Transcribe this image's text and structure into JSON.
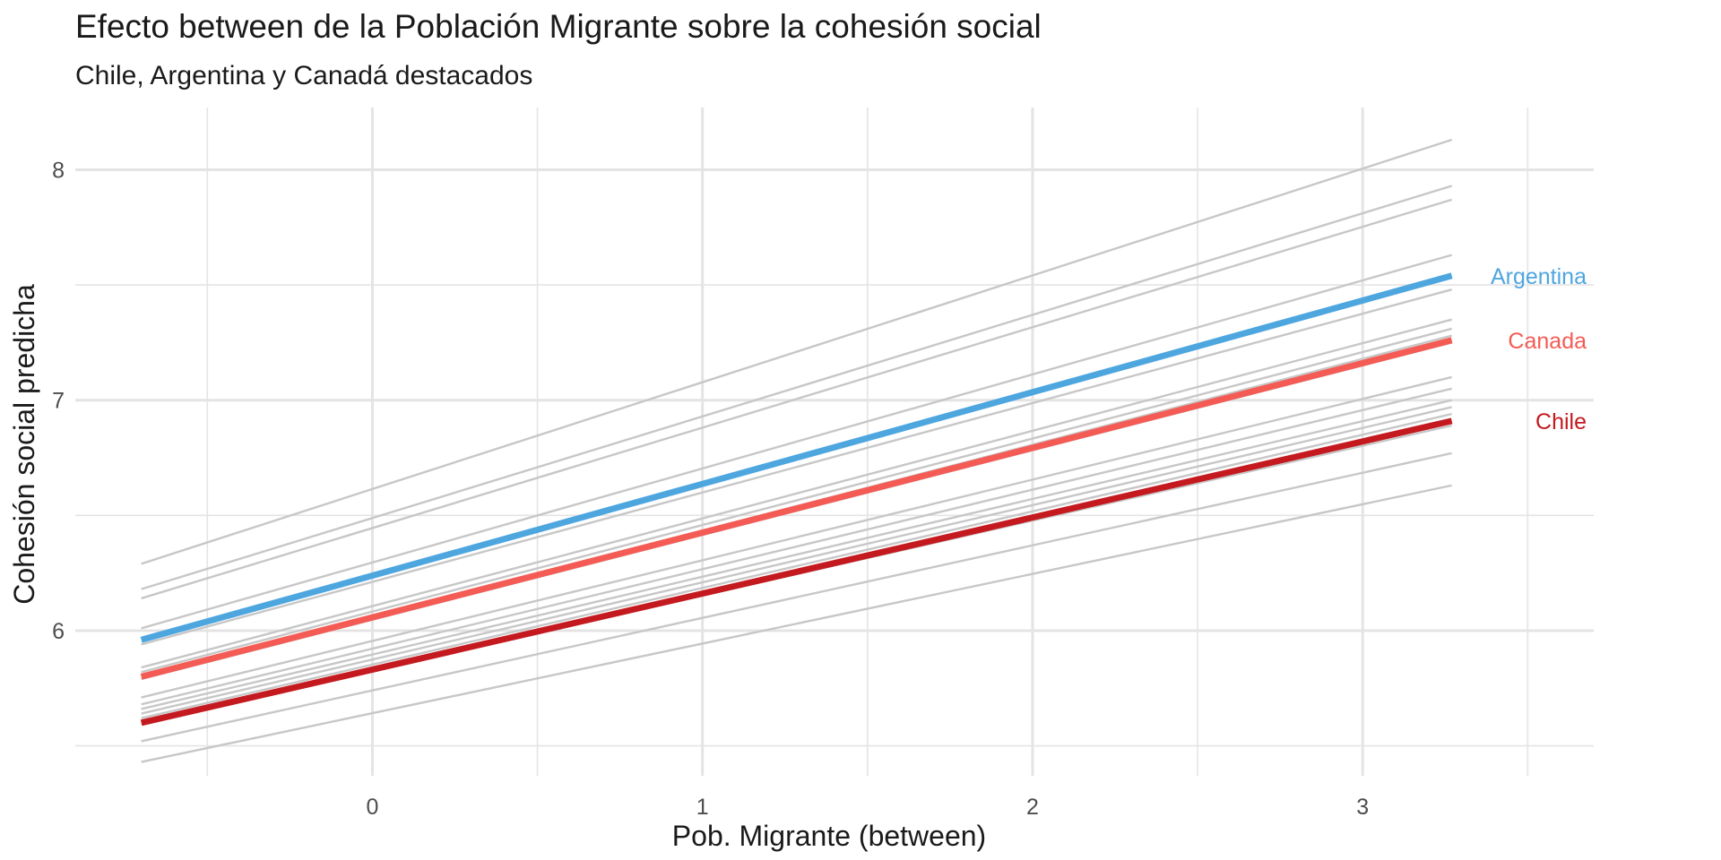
{
  "chart_data": {
    "type": "line",
    "title": "Efecto between de la Población Migrante sobre la cohesión social",
    "subtitle": "Chile, Argentina y Canadá destacados",
    "xlabel": "Pob. Migrante (between)",
    "ylabel": "Cohesión social predicha",
    "xlim": [
      -0.9,
      3.7
    ],
    "ylim": [
      5.37,
      8.27
    ],
    "x_ticks": [
      0,
      1,
      2,
      3
    ],
    "x_tick_labels": [
      "0",
      "1",
      "2",
      "3"
    ],
    "x_minor_ticks": [
      -0.5,
      0.5,
      1.5,
      2.5,
      3.5
    ],
    "y_ticks": [
      6,
      7,
      8
    ],
    "y_tick_labels": [
      "6",
      "7",
      "8"
    ],
    "y_minor_ticks": [
      5.5,
      6.5,
      7.5
    ],
    "grid": true,
    "x_range": [
      -0.7,
      3.27
    ],
    "background_series": [
      {
        "y": [
          6.29,
          8.13
        ]
      },
      {
        "y": [
          6.18,
          7.93
        ]
      },
      {
        "y": [
          6.14,
          7.87
        ]
      },
      {
        "y": [
          6.01,
          7.63
        ]
      },
      {
        "y": [
          5.94,
          7.48
        ]
      },
      {
        "y": [
          5.84,
          7.35
        ]
      },
      {
        "y": [
          5.82,
          7.31
        ]
      },
      {
        "y": [
          5.8,
          7.28
        ]
      },
      {
        "y": [
          5.79,
          7.25
        ]
      },
      {
        "y": [
          5.71,
          7.1
        ]
      },
      {
        "y": [
          5.68,
          7.05
        ]
      },
      {
        "y": [
          5.66,
          7.0
        ]
      },
      {
        "y": [
          5.64,
          6.97
        ]
      },
      {
        "y": [
          5.62,
          6.94
        ]
      },
      {
        "y": [
          5.6,
          6.89
        ]
      },
      {
        "y": [
          5.52,
          6.77
        ]
      },
      {
        "y": [
          5.43,
          6.63
        ]
      }
    ],
    "series": [
      {
        "name": "Argentina",
        "y": [
          5.96,
          7.54
        ],
        "color": "#4EA6DF"
      },
      {
        "name": "Canada",
        "y": [
          5.8,
          7.26
        ],
        "color": "#F45B54"
      },
      {
        "name": "Chile",
        "y": [
          5.6,
          6.91
        ],
        "color": "#C41A1F"
      }
    ],
    "colors": {
      "background_line": "#C7C7C7",
      "grid": "#E4E4E4",
      "text": "#222222",
      "tick_text": "#4D4D4D"
    }
  }
}
